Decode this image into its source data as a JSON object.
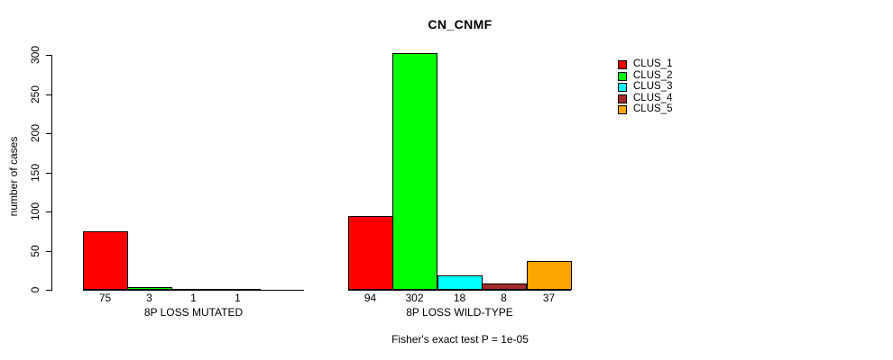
{
  "chart_data": {
    "type": "bar",
    "title": "CN_CNMF",
    "ylabel": "number of cases",
    "xlabel": "",
    "ylim": [
      0,
      300
    ],
    "yticks": [
      0,
      50,
      100,
      150,
      200,
      250,
      300
    ],
    "grid": false,
    "legend_position": "right",
    "categories": [
      "8P LOSS MUTATED",
      "8P LOSS WILD-TYPE"
    ],
    "series": [
      {
        "name": "CLUS_1",
        "color": "#FF0000",
        "values": [
          75,
          94
        ]
      },
      {
        "name": "CLUS_2",
        "color": "#00FF00",
        "values": [
          3,
          302
        ]
      },
      {
        "name": "CLUS_3",
        "color": "#00FFFF",
        "values": [
          1,
          18
        ]
      },
      {
        "name": "CLUS_4",
        "color": "#A52A2A",
        "values": [
          1,
          8
        ]
      },
      {
        "name": "CLUS_5",
        "color": "#FFA500",
        "values": [
          null,
          37
        ]
      }
    ],
    "footnote": "Fisher's exact test P = 1e-05"
  }
}
